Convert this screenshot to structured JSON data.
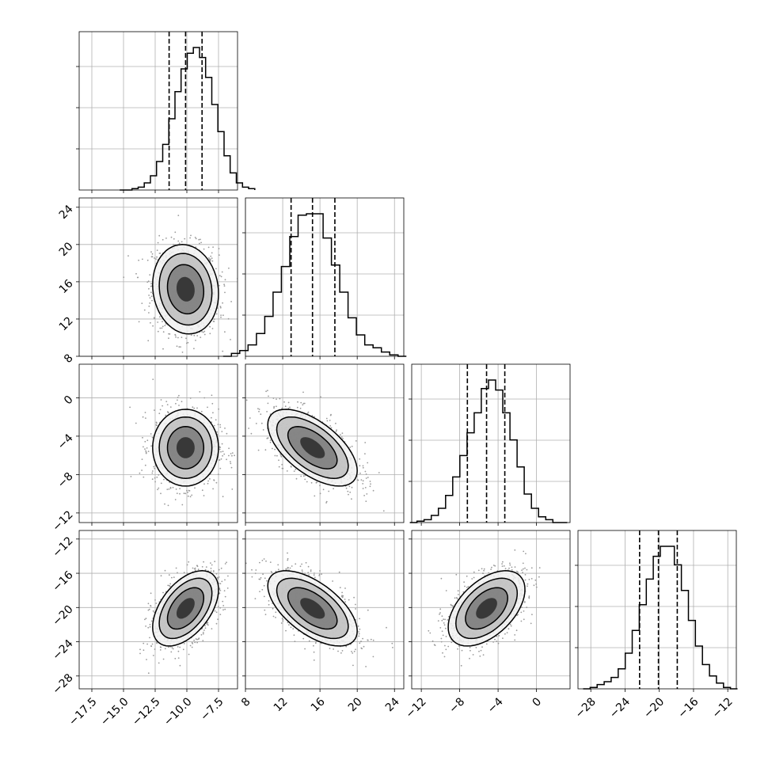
{
  "chart_data": {
    "type": "corner",
    "parameters": [
      {
        "range": [
          -18.5,
          -6.0
        ],
        "ticks": [
          -17.5,
          -15.0,
          -12.5,
          -10.0,
          -7.5
        ],
        "tick_labels": [
          "−17.5",
          "−15.0",
          "−12.5",
          "−10.0",
          "−7.5"
        ],
        "mean": -10.1,
        "sd": 1.3,
        "quantiles": [
          -11.4,
          -10.1,
          -8.8
        ]
      },
      {
        "range": [
          8.0,
          25.0
        ],
        "ticks": [
          8,
          12,
          16,
          20,
          24
        ],
        "tick_labels": [
          "8",
          "12",
          "16",
          "20",
          "24"
        ],
        "mean": 15.2,
        "sd": 2.4,
        "quantiles": [
          12.9,
          15.2,
          17.6
        ]
      },
      {
        "range": [
          -13.0,
          3.5
        ],
        "ticks": [
          -12,
          -8,
          -4,
          0
        ],
        "tick_labels": [
          "−12",
          "−8",
          "−4",
          "0"
        ],
        "mean": -5.2,
        "sd": 2.0,
        "quantiles": [
          -7.2,
          -5.2,
          -3.3
        ]
      },
      {
        "range": [
          -29.5,
          -11.0
        ],
        "ticks": [
          -28,
          -24,
          -20,
          -16,
          -12
        ],
        "tick_labels": [
          "−28",
          "−24",
          "−20",
          "−16",
          "−12"
        ],
        "mean": -20.1,
        "sd": 2.2,
        "quantiles": [
          -22.3,
          -20.1,
          -17.9
        ]
      }
    ],
    "correlations": {
      "1-0": -0.1,
      "2-0": 0.0,
      "2-1": -0.6,
      "3-0": 0.5,
      "3-1": -0.6,
      "3-2": 0.5
    },
    "histograms": [
      [
        0.0,
        0.0,
        0.01,
        0.02,
        0.05,
        0.1,
        0.2,
        0.32,
        0.5,
        0.69,
        0.85,
        0.96,
        1.0,
        0.93,
        0.79,
        0.6,
        0.41,
        0.24,
        0.12,
        0.05,
        0.02,
        0.01
      ],
      [
        0.0,
        0.02,
        0.04,
        0.08,
        0.16,
        0.28,
        0.45,
        0.63,
        0.84,
        0.99,
        1.0,
        1.0,
        0.83,
        0.64,
        0.45,
        0.27,
        0.15,
        0.08,
        0.06,
        0.03,
        0.01,
        0.0
      ],
      [
        0.0,
        0.01,
        0.02,
        0.05,
        0.1,
        0.19,
        0.32,
        0.47,
        0.63,
        0.77,
        0.94,
        1.0,
        0.93,
        0.77,
        0.58,
        0.39,
        0.2,
        0.1,
        0.04,
        0.02,
        0.0,
        0.0
      ],
      [
        0.0,
        0.01,
        0.03,
        0.05,
        0.08,
        0.14,
        0.25,
        0.41,
        0.59,
        0.77,
        0.93,
        1.0,
        1.0,
        0.87,
        0.69,
        0.48,
        0.3,
        0.17,
        0.09,
        0.04,
        0.01,
        0.0
      ]
    ],
    "grid": true,
    "quantile_lines": "dashed"
  }
}
